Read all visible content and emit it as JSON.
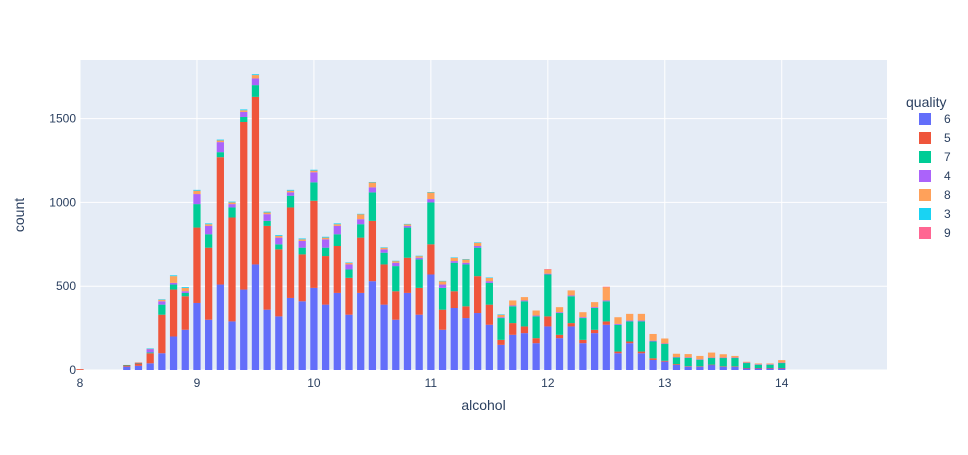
{
  "chart_data": {
    "type": "bar",
    "barmode": "stack",
    "xlabel": "alcohol",
    "ylabel": "count",
    "xlim": [
      8,
      14.9
    ],
    "ylim": [
      0,
      1850
    ],
    "x_ticks": [
      8,
      9,
      10,
      11,
      12,
      13,
      14
    ],
    "y_ticks": [
      0,
      500,
      1000,
      1500
    ],
    "grid": true,
    "legend_title": "quality",
    "legend_position": "right",
    "x": [
      8.0,
      8.4,
      8.5,
      8.6,
      8.7,
      8.8,
      8.9,
      9.0,
      9.1,
      9.2,
      9.3,
      9.4,
      9.5,
      9.6,
      9.7,
      9.8,
      9.9,
      10.0,
      10.1,
      10.2,
      10.3,
      10.4,
      10.5,
      10.6,
      10.7,
      10.8,
      10.9,
      11.0,
      11.1,
      11.2,
      11.3,
      11.4,
      11.5,
      11.6,
      11.7,
      11.8,
      11.9,
      12.0,
      12.1,
      12.2,
      12.3,
      12.4,
      12.5,
      12.6,
      12.7,
      12.8,
      12.9,
      13.0,
      13.1,
      13.2,
      13.3,
      13.4,
      13.5,
      13.6,
      13.7,
      13.8,
      13.9,
      14.0
    ],
    "series": [
      {
        "name": "6",
        "color": "#636efa",
        "values": [
          0,
          20,
          25,
          40,
          100,
          200,
          240,
          400,
          300,
          510,
          290,
          480,
          630,
          360,
          320,
          430,
          410,
          490,
          390,
          460,
          330,
          460,
          530,
          390,
          300,
          460,
          330,
          570,
          240,
          370,
          310,
          340,
          270,
          150,
          210,
          220,
          160,
          260,
          190,
          260,
          160,
          220,
          270,
          100,
          160,
          100,
          60,
          50,
          30,
          20,
          20,
          30,
          20,
          20,
          10,
          10,
          10,
          10
        ]
      },
      {
        "name": "5",
        "color": "#ef553b",
        "values": [
          5,
          8,
          15,
          60,
          230,
          280,
          200,
          450,
          430,
          760,
          620,
          1000,
          1000,
          500,
          400,
          540,
          280,
          520,
          290,
          280,
          220,
          330,
          360,
          240,
          170,
          210,
          160,
          180,
          120,
          100,
          70,
          220,
          120,
          30,
          70,
          40,
          30,
          60,
          20,
          20,
          20,
          20,
          20,
          10,
          10,
          10,
          10,
          5,
          5,
          3,
          2,
          2,
          2,
          2,
          2,
          2,
          2,
          2
        ]
      },
      {
        "name": "7",
        "color": "#00cc96",
        "values": [
          0,
          2,
          2,
          5,
          60,
          30,
          20,
          140,
          80,
          30,
          60,
          30,
          70,
          30,
          30,
          70,
          40,
          110,
          50,
          70,
          50,
          80,
          170,
          70,
          150,
          180,
          170,
          250,
          130,
          170,
          250,
          170,
          130,
          130,
          100,
          150,
          130,
          250,
          130,
          160,
          130,
          130,
          120,
          160,
          120,
          180,
          100,
          100,
          40,
          50,
          40,
          40,
          50,
          50,
          30,
          20,
          20,
          30
        ]
      },
      {
        "name": "4",
        "color": "#ab63fa",
        "values": [
          0,
          0,
          2,
          20,
          20,
          10,
          10,
          60,
          50,
          60,
          20,
          30,
          40,
          40,
          40,
          20,
          40,
          60,
          50,
          50,
          30,
          30,
          30,
          20,
          20,
          10,
          10,
          20,
          20,
          10,
          10,
          10,
          10,
          5,
          5,
          5,
          5,
          5,
          5,
          5,
          5,
          5,
          5,
          5,
          5,
          5,
          5,
          3,
          2,
          2,
          2,
          2,
          2,
          2,
          2,
          2,
          2,
          2
        ]
      },
      {
        "name": "8",
        "color": "#ffa15a",
        "values": [
          0,
          0,
          2,
          2,
          10,
          40,
          20,
          20,
          10,
          10,
          10,
          10,
          20,
          10,
          10,
          10,
          10,
          10,
          10,
          10,
          10,
          30,
          30,
          10,
          10,
          10,
          10,
          40,
          20,
          20,
          20,
          20,
          20,
          15,
          30,
          20,
          30,
          25,
          30,
          30,
          30,
          30,
          80,
          40,
          40,
          40,
          40,
          30,
          20,
          20,
          20,
          30,
          20,
          10,
          5,
          5,
          5,
          15
        ]
      },
      {
        "name": "3",
        "color": "#19d3f3",
        "values": [
          0,
          0,
          0,
          2,
          2,
          5,
          5,
          5,
          5,
          5,
          5,
          5,
          5,
          5,
          5,
          5,
          5,
          5,
          5,
          5,
          2,
          2,
          2,
          2,
          2,
          2,
          2,
          2,
          2,
          2,
          2,
          2,
          2,
          2,
          0,
          0,
          0,
          0,
          0,
          0,
          0,
          0,
          0,
          0,
          0,
          0,
          0,
          0,
          0,
          0,
          0,
          0,
          0,
          0,
          0,
          0,
          0,
          0
        ]
      },
      {
        "name": "9",
        "color": "#ff6692",
        "values": [
          0,
          0,
          0,
          0,
          0,
          0,
          0,
          0,
          0,
          0,
          0,
          0,
          0,
          0,
          0,
          0,
          0,
          0,
          0,
          0,
          0,
          0,
          0,
          0,
          0,
          0,
          0,
          0,
          0,
          0,
          0,
          0,
          0,
          0,
          0,
          0,
          0,
          2,
          0,
          0,
          0,
          0,
          2,
          0,
          0,
          0,
          0,
          0,
          0,
          0,
          0,
          0,
          0,
          0,
          0,
          0,
          0,
          0
        ]
      }
    ]
  }
}
